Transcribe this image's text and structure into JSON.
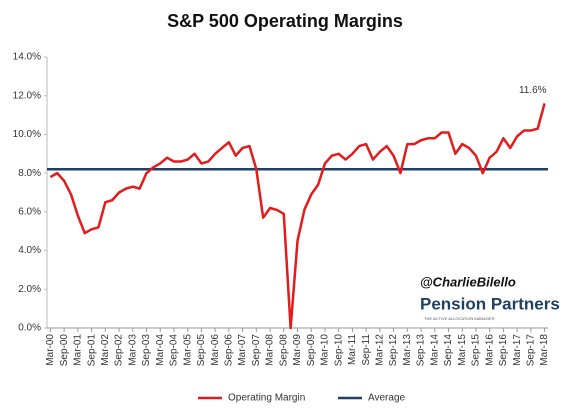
{
  "chart_data": {
    "type": "line",
    "title": "S&P 500 Operating Margins",
    "categories": [
      "Mar-00",
      null,
      "Sep-00",
      null,
      "Mar-01",
      null,
      "Sep-01",
      null,
      "Mar-02",
      null,
      "Sep-02",
      null,
      "Mar-03",
      null,
      "Sep-03",
      null,
      "Mar-04",
      null,
      "Sep-04",
      null,
      "Mar-05",
      null,
      "Sep-05",
      null,
      "Mar-06",
      null,
      "Sep-06",
      null,
      "Mar-07",
      null,
      "Sep-07",
      null,
      "Mar-08",
      null,
      "Sep-08",
      null,
      "Mar-09",
      null,
      "Sep-09",
      null,
      "Mar-10",
      null,
      "Sep-10",
      null,
      "Mar-11",
      null,
      "Sep-11",
      null,
      "Mar-12",
      null,
      "Sep-12",
      null,
      "Mar-13",
      null,
      "Sep-13",
      null,
      "Mar-14",
      null,
      "Sep-14",
      null,
      "Mar-15",
      null,
      "Sep-15",
      null,
      "Mar-16",
      null,
      "Sep-16",
      null,
      "Mar-17",
      null,
      "Sep-17",
      null,
      "Mar-18"
    ],
    "series": [
      {
        "name": "Operating Margin",
        "color": "#e31b1b",
        "values": [
          7.8,
          8.0,
          7.6,
          6.9,
          5.8,
          4.9,
          5.1,
          5.2,
          6.5,
          6.6,
          7.0,
          7.2,
          7.3,
          7.2,
          8.0,
          8.3,
          8.5,
          8.8,
          8.6,
          8.6,
          8.7,
          9.0,
          8.5,
          8.6,
          9.0,
          9.3,
          9.6,
          8.9,
          9.3,
          9.4,
          8.2,
          5.7,
          6.2,
          6.1,
          5.9,
          0.0,
          4.5,
          6.1,
          6.9,
          7.4,
          8.5,
          8.9,
          9.0,
          8.7,
          9.0,
          9.4,
          9.5,
          8.7,
          9.1,
          9.4,
          8.9,
          8.0,
          9.5,
          9.5,
          9.7,
          9.8,
          9.8,
          10.1,
          10.1,
          9.0,
          9.5,
          9.3,
          8.9,
          8.0,
          8.8,
          9.1,
          9.8,
          9.3,
          9.9,
          10.2,
          10.2,
          10.3,
          11.6
        ],
        "value_labels": [
          null,
          null,
          null,
          null,
          null,
          null,
          null,
          null,
          null,
          null,
          null,
          null,
          null,
          null,
          null,
          null,
          null,
          null,
          null,
          null,
          null,
          null,
          null,
          null,
          null,
          null,
          null,
          null,
          null,
          null,
          null,
          null,
          null,
          null,
          null,
          null,
          null,
          null,
          null,
          null,
          null,
          null,
          null,
          null,
          null,
          null,
          null,
          null,
          null,
          null,
          null,
          null,
          null,
          null,
          null,
          null,
          null,
          null,
          null,
          null,
          null,
          null,
          null,
          null,
          null,
          null,
          null,
          null,
          null,
          null,
          null,
          null,
          "11.6%"
        ]
      }
    ],
    "average": {
      "name": "Average",
      "color": "#1f3f64",
      "value": 8.2
    },
    "ylim": [
      0,
      14
    ],
    "yticks": [
      {
        "value": 0,
        "label": "0.0%"
      },
      {
        "value": 2,
        "label": "2.0%"
      },
      {
        "value": 4,
        "label": "4.0%"
      },
      {
        "value": 6,
        "label": "6.0%"
      },
      {
        "value": 8,
        "label": "8.0%"
      },
      {
        "value": 10,
        "label": "10.0%"
      },
      {
        "value": 12,
        "label": "12.0%"
      },
      {
        "value": 14,
        "label": "14.0%"
      }
    ],
    "grid": false,
    "legend": "bottom",
    "annotations": [
      "@CharlieBilello",
      "Pension Partners",
      "THE ACTIVE ALLOCATION MANAGER"
    ]
  }
}
